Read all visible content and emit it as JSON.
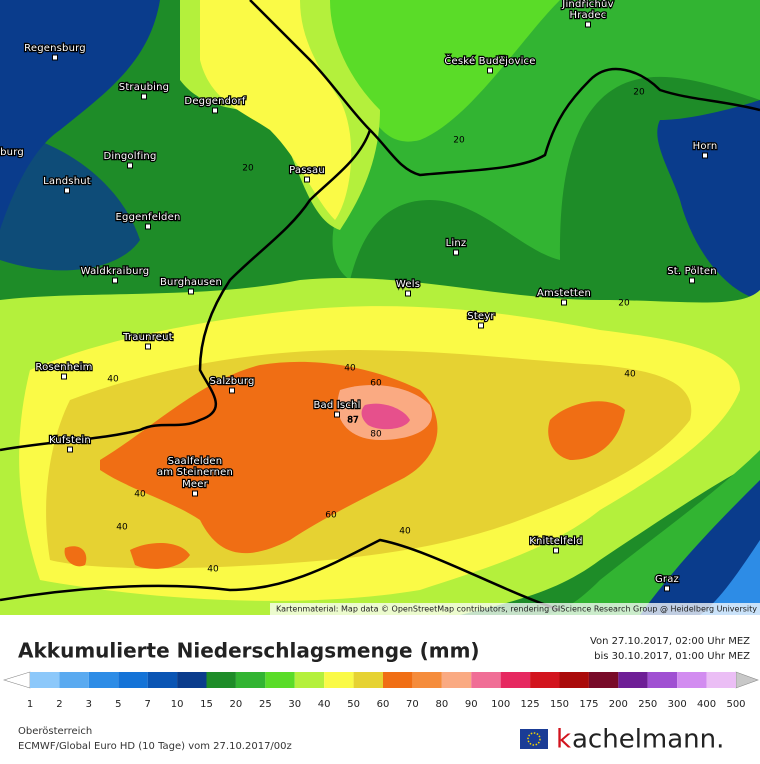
{
  "map": {
    "cities": [
      "Regensburg",
      "Straubing",
      "Deggendorf",
      "Dingolfing",
      "Landshut",
      "Passau",
      "Eggenfelden",
      "Waldkraiburg",
      "Burghausen",
      "Traunreut",
      "Rosenheim",
      "Salzburg",
      "Kufstein",
      "Saalfelden",
      "am Steinernen",
      "Meer",
      "Bad Ischl",
      "České Budějovice",
      "Jindřichův",
      "Hradec",
      "Horn",
      "Linz",
      "Wels",
      "Steyr",
      "Amstetten",
      "St. Pölten",
      "Knittelfeld",
      "Graz",
      "burg"
    ],
    "contour_labels": [
      20,
      20,
      20,
      20,
      40,
      40,
      40,
      40,
      40,
      40,
      40,
      60,
      60,
      80,
      87
    ],
    "attribution": "Kartenmaterial: Map data © OpenStreetMap contributors, rendering GIScience Research Group @ Heidelberg University"
  },
  "header": {
    "title": "Akkumulierte Niederschlagsmenge (mm)",
    "from": "Von 27.10.2017, 02:00 Uhr MEZ",
    "to": "bis 30.10.2017, 01:00 Uhr MEZ"
  },
  "legend": {
    "values": [
      1,
      2,
      3,
      5,
      7,
      10,
      15,
      20,
      25,
      30,
      40,
      50,
      60,
      70,
      80,
      90,
      100,
      125,
      150,
      175,
      200,
      250,
      300,
      400,
      500
    ],
    "colors": [
      "#b4dcff",
      "#8cc8fa",
      "#5aaaf0",
      "#2d8ce6",
      "#1473d7",
      "#0a55b4",
      "#0a3c8c",
      "#1e8c28",
      "#32b432",
      "#5adc28",
      "#b4f03c",
      "#fafa46",
      "#e6d232",
      "#f06e14",
      "#f58c3c",
      "#faaa82",
      "#f06e96",
      "#e62860",
      "#d2141e",
      "#aa0a0a",
      "#780a28",
      "#6e1e96",
      "#a050d2",
      "#d28cf0",
      "#ebbef5",
      "#f5e6fa",
      "#c8c8c8"
    ]
  },
  "footer": {
    "region": "Oberösterreich",
    "model": "ECMWF/Global Euro HD (10 Tage) vom 27.10.2017/00z",
    "brand_k": "k",
    "brand_rest": "achelmann."
  }
}
